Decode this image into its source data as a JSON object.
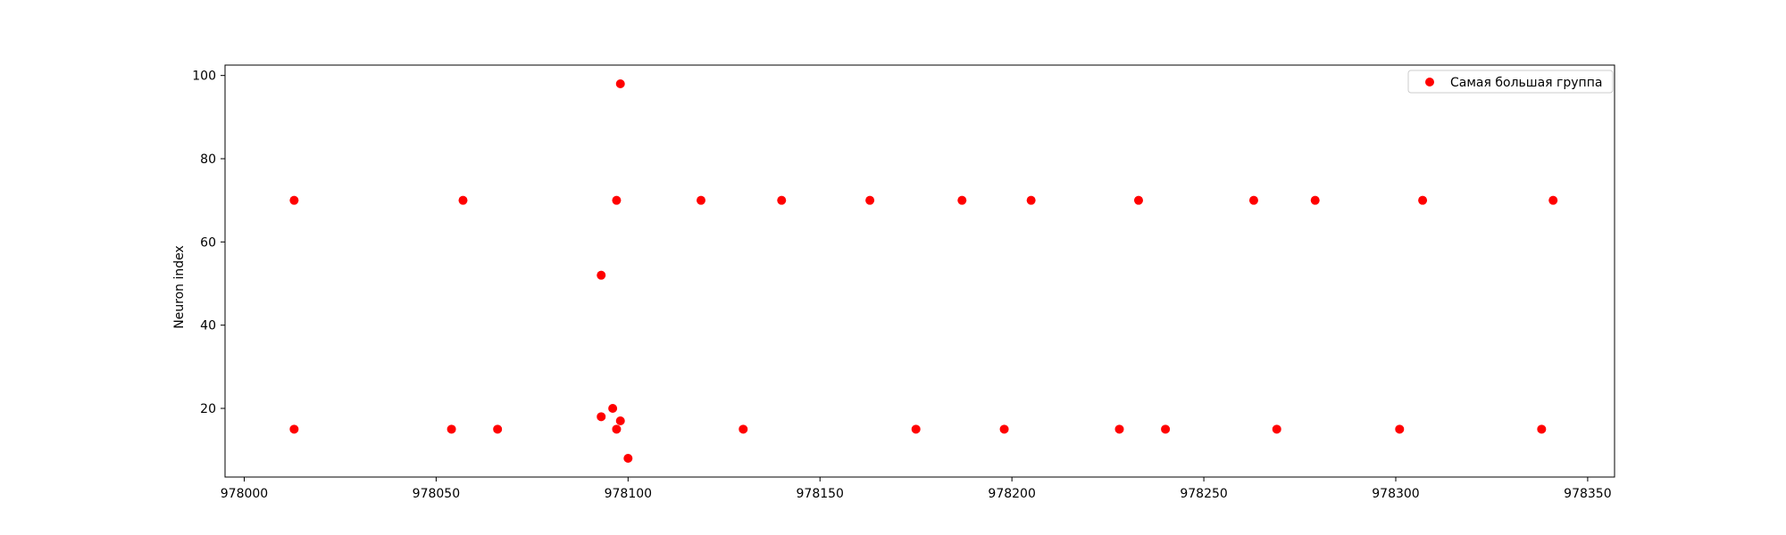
{
  "chart_data": {
    "type": "scatter",
    "title": "",
    "xlabel": "",
    "ylabel": "Neuron index",
    "xlim": [
      977995,
      978357
    ],
    "ylim": [
      3.5,
      102.5
    ],
    "xticks": [
      978000,
      978050,
      978100,
      978150,
      978200,
      978250,
      978300,
      978350
    ],
    "yticks": [
      20,
      40,
      60,
      80,
      100
    ],
    "grid": false,
    "legend": {
      "placement": "top-right"
    },
    "series": [
      {
        "name": "Самая большая группа",
        "color": "#ff0000",
        "points": [
          {
            "x": 978013,
            "y": 70
          },
          {
            "x": 978013,
            "y": 15
          },
          {
            "x": 978057,
            "y": 70
          },
          {
            "x": 978054,
            "y": 15
          },
          {
            "x": 978066,
            "y": 15
          },
          {
            "x": 978093,
            "y": 52
          },
          {
            "x": 978093,
            "y": 18
          },
          {
            "x": 978096,
            "y": 20
          },
          {
            "x": 978097,
            "y": 70
          },
          {
            "x": 978097,
            "y": 15
          },
          {
            "x": 978098,
            "y": 98
          },
          {
            "x": 978098,
            "y": 17
          },
          {
            "x": 978100,
            "y": 8
          },
          {
            "x": 978119,
            "y": 70
          },
          {
            "x": 978130,
            "y": 15
          },
          {
            "x": 978140,
            "y": 70
          },
          {
            "x": 978163,
            "y": 70
          },
          {
            "x": 978175,
            "y": 15
          },
          {
            "x": 978187,
            "y": 70
          },
          {
            "x": 978198,
            "y": 15
          },
          {
            "x": 978205,
            "y": 70
          },
          {
            "x": 978228,
            "y": 15
          },
          {
            "x": 978233,
            "y": 70
          },
          {
            "x": 978240,
            "y": 15
          },
          {
            "x": 978263,
            "y": 70
          },
          {
            "x": 978269,
            "y": 15
          },
          {
            "x": 978279,
            "y": 70
          },
          {
            "x": 978301,
            "y": 15
          },
          {
            "x": 978307,
            "y": 70
          },
          {
            "x": 978338,
            "y": 15
          },
          {
            "x": 978341,
            "y": 70
          }
        ]
      }
    ]
  }
}
